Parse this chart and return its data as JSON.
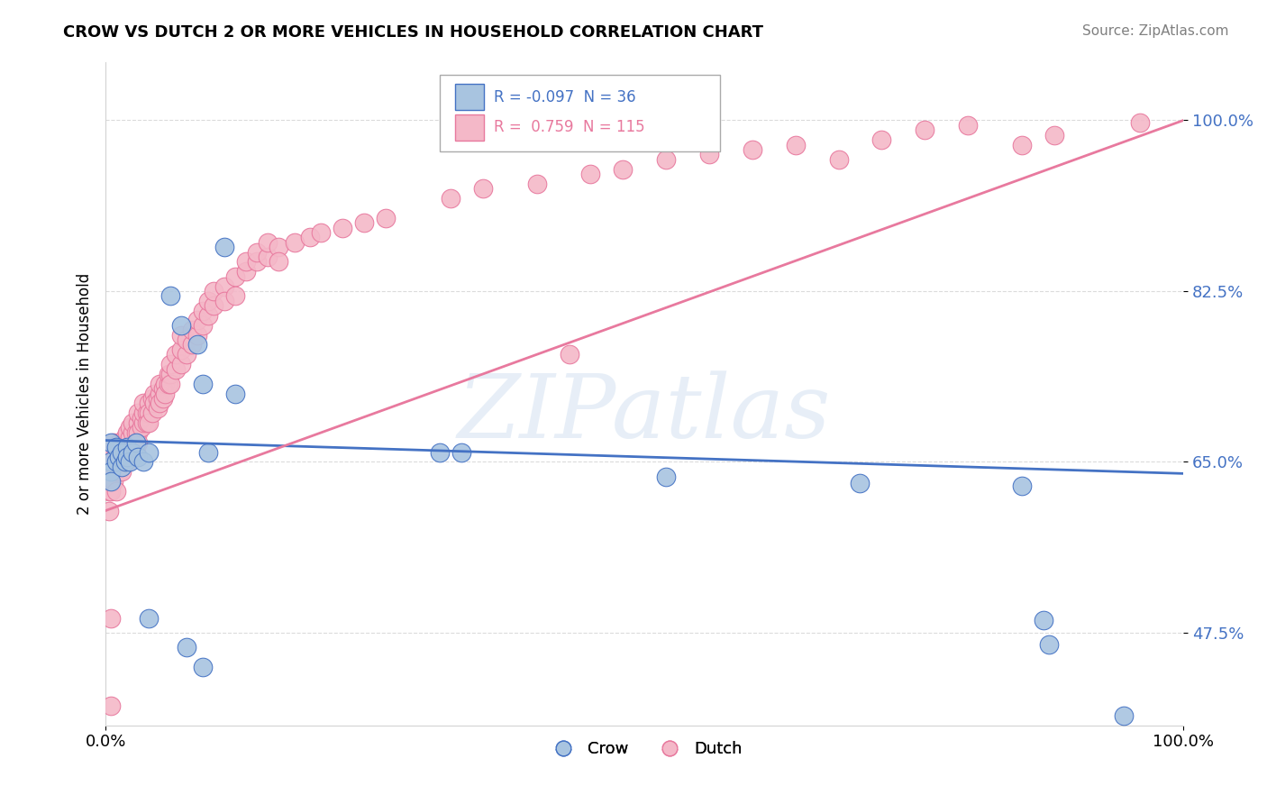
{
  "title": "CROW VS DUTCH 2 OR MORE VEHICLES IN HOUSEHOLD CORRELATION CHART",
  "source": "Source: ZipAtlas.com",
  "ylabel": "2 or more Vehicles in Household",
  "xlabel": "",
  "watermark": "ZIPatlas",
  "xlim": [
    0.0,
    1.0
  ],
  "ylim": [
    0.38,
    1.06
  ],
  "yticks": [
    0.475,
    0.65,
    0.825,
    1.0
  ],
  "ytick_labels": [
    "47.5%",
    "65.0%",
    "82.5%",
    "100.0%"
  ],
  "xtick_labels": [
    "0.0%",
    "100.0%"
  ],
  "xticks": [
    0.0,
    1.0
  ],
  "crow_R": -0.097,
  "crow_N": 36,
  "dutch_R": 0.759,
  "dutch_N": 115,
  "crow_color": "#a8c4e0",
  "dutch_color": "#f4b8c8",
  "crow_line_color": "#4472c4",
  "dutch_line_color": "#e8799e",
  "crow_line": [
    0.0,
    0.672,
    1.0,
    0.638
  ],
  "dutch_line": [
    0.0,
    0.6,
    1.0,
    1.0
  ],
  "crow_scatter": [
    [
      0.005,
      0.67
    ],
    [
      0.005,
      0.65
    ],
    [
      0.005,
      0.64
    ],
    [
      0.005,
      0.63
    ],
    [
      0.01,
      0.665
    ],
    [
      0.01,
      0.65
    ],
    [
      0.012,
      0.655
    ],
    [
      0.015,
      0.66
    ],
    [
      0.015,
      0.645
    ],
    [
      0.018,
      0.65
    ],
    [
      0.02,
      0.665
    ],
    [
      0.02,
      0.655
    ],
    [
      0.022,
      0.65
    ],
    [
      0.025,
      0.66
    ],
    [
      0.028,
      0.67
    ],
    [
      0.03,
      0.655
    ],
    [
      0.035,
      0.65
    ],
    [
      0.04,
      0.66
    ],
    [
      0.06,
      0.82
    ],
    [
      0.07,
      0.79
    ],
    [
      0.085,
      0.77
    ],
    [
      0.09,
      0.73
    ],
    [
      0.095,
      0.66
    ],
    [
      0.11,
      0.87
    ],
    [
      0.12,
      0.72
    ],
    [
      0.04,
      0.49
    ],
    [
      0.075,
      0.46
    ],
    [
      0.09,
      0.44
    ],
    [
      0.31,
      0.66
    ],
    [
      0.33,
      0.66
    ],
    [
      0.52,
      0.635
    ],
    [
      0.7,
      0.628
    ],
    [
      0.85,
      0.625
    ],
    [
      0.87,
      0.488
    ],
    [
      0.875,
      0.463
    ],
    [
      0.945,
      0.39
    ]
  ],
  "dutch_scatter": [
    [
      0.003,
      0.63
    ],
    [
      0.003,
      0.6
    ],
    [
      0.003,
      0.62
    ],
    [
      0.003,
      0.65
    ],
    [
      0.005,
      0.64
    ],
    [
      0.005,
      0.62
    ],
    [
      0.005,
      0.66
    ],
    [
      0.005,
      0.49
    ],
    [
      0.007,
      0.63
    ],
    [
      0.007,
      0.65
    ],
    [
      0.007,
      0.67
    ],
    [
      0.01,
      0.64
    ],
    [
      0.01,
      0.66
    ],
    [
      0.01,
      0.65
    ],
    [
      0.01,
      0.62
    ],
    [
      0.012,
      0.65
    ],
    [
      0.012,
      0.67
    ],
    [
      0.012,
      0.64
    ],
    [
      0.015,
      0.66
    ],
    [
      0.015,
      0.64
    ],
    [
      0.015,
      0.67
    ],
    [
      0.015,
      0.65
    ],
    [
      0.018,
      0.66
    ],
    [
      0.018,
      0.65
    ],
    [
      0.018,
      0.675
    ],
    [
      0.02,
      0.67
    ],
    [
      0.02,
      0.66
    ],
    [
      0.02,
      0.65
    ],
    [
      0.02,
      0.68
    ],
    [
      0.022,
      0.675
    ],
    [
      0.022,
      0.66
    ],
    [
      0.022,
      0.685
    ],
    [
      0.025,
      0.68
    ],
    [
      0.025,
      0.665
    ],
    [
      0.025,
      0.69
    ],
    [
      0.028,
      0.68
    ],
    [
      0.028,
      0.67
    ],
    [
      0.028,
      0.66
    ],
    [
      0.03,
      0.69
    ],
    [
      0.03,
      0.68
    ],
    [
      0.03,
      0.67
    ],
    [
      0.03,
      0.7
    ],
    [
      0.033,
      0.685
    ],
    [
      0.033,
      0.695
    ],
    [
      0.035,
      0.69
    ],
    [
      0.035,
      0.7
    ],
    [
      0.035,
      0.71
    ],
    [
      0.038,
      0.7
    ],
    [
      0.038,
      0.69
    ],
    [
      0.04,
      0.71
    ],
    [
      0.04,
      0.7
    ],
    [
      0.04,
      0.69
    ],
    [
      0.043,
      0.7
    ],
    [
      0.043,
      0.715
    ],
    [
      0.045,
      0.72
    ],
    [
      0.045,
      0.71
    ],
    [
      0.048,
      0.715
    ],
    [
      0.048,
      0.705
    ],
    [
      0.05,
      0.72
    ],
    [
      0.05,
      0.71
    ],
    [
      0.05,
      0.73
    ],
    [
      0.053,
      0.725
    ],
    [
      0.053,
      0.715
    ],
    [
      0.055,
      0.73
    ],
    [
      0.055,
      0.72
    ],
    [
      0.058,
      0.73
    ],
    [
      0.058,
      0.74
    ],
    [
      0.06,
      0.74
    ],
    [
      0.06,
      0.73
    ],
    [
      0.06,
      0.75
    ],
    [
      0.065,
      0.745
    ],
    [
      0.065,
      0.76
    ],
    [
      0.07,
      0.75
    ],
    [
      0.07,
      0.765
    ],
    [
      0.07,
      0.78
    ],
    [
      0.075,
      0.76
    ],
    [
      0.075,
      0.775
    ],
    [
      0.08,
      0.77
    ],
    [
      0.08,
      0.785
    ],
    [
      0.085,
      0.78
    ],
    [
      0.085,
      0.795
    ],
    [
      0.09,
      0.79
    ],
    [
      0.09,
      0.805
    ],
    [
      0.095,
      0.8
    ],
    [
      0.095,
      0.815
    ],
    [
      0.1,
      0.81
    ],
    [
      0.1,
      0.825
    ],
    [
      0.11,
      0.83
    ],
    [
      0.11,
      0.815
    ],
    [
      0.12,
      0.84
    ],
    [
      0.12,
      0.82
    ],
    [
      0.13,
      0.845
    ],
    [
      0.13,
      0.855
    ],
    [
      0.14,
      0.855
    ],
    [
      0.14,
      0.865
    ],
    [
      0.15,
      0.86
    ],
    [
      0.15,
      0.875
    ],
    [
      0.16,
      0.87
    ],
    [
      0.16,
      0.855
    ],
    [
      0.175,
      0.875
    ],
    [
      0.19,
      0.88
    ],
    [
      0.2,
      0.885
    ],
    [
      0.22,
      0.89
    ],
    [
      0.24,
      0.895
    ],
    [
      0.26,
      0.9
    ],
    [
      0.32,
      0.92
    ],
    [
      0.35,
      0.93
    ],
    [
      0.4,
      0.935
    ],
    [
      0.43,
      0.76
    ],
    [
      0.45,
      0.945
    ],
    [
      0.48,
      0.95
    ],
    [
      0.52,
      0.96
    ],
    [
      0.56,
      0.965
    ],
    [
      0.6,
      0.97
    ],
    [
      0.64,
      0.975
    ],
    [
      0.68,
      0.96
    ],
    [
      0.72,
      0.98
    ],
    [
      0.76,
      0.99
    ],
    [
      0.8,
      0.995
    ],
    [
      0.85,
      0.975
    ],
    [
      0.88,
      0.985
    ],
    [
      0.96,
      0.998
    ],
    [
      0.005,
      0.4
    ]
  ]
}
